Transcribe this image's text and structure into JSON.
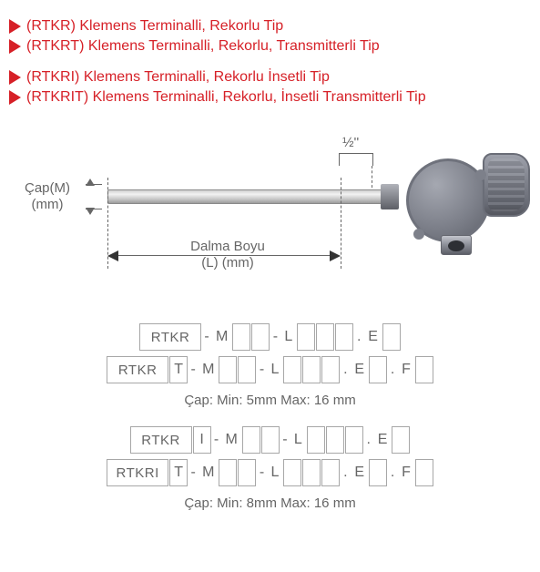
{
  "colors": {
    "accent": "#d62027",
    "text": "#666666",
    "box_border": "#a7a7a7",
    "metal_light": "#d0d0d0",
    "metal_dark": "#5d6069",
    "background": "#ffffff"
  },
  "headings": {
    "group1": {
      "line1": "(RTKR) Klemens Terminalli, Rekorlu Tip",
      "line2": "(RTKRT) Klemens Terminalli, Rekorlu, Transmitterli Tip"
    },
    "group2": {
      "line1": "(RTKRI) Klemens Terminalli, Rekorlu İnsetli Tip",
      "line2": "(RTKRIT) Klemens Terminalli, Rekorlu, İnsetli Transmitterli Tip"
    }
  },
  "diagram": {
    "thread_label": "½''",
    "diameter_label1": "Çap(M)",
    "diameter_label2": "(mm)",
    "length_label1": "Dalma Boyu",
    "length_label2": "(L) (mm)"
  },
  "codes": {
    "row1": {
      "prefix": "RTKR",
      "variant": "",
      "m": "M",
      "l": "L",
      "e": "E",
      "f": ""
    },
    "row2": {
      "prefix": "RTKR",
      "variant": "T",
      "m": "M",
      "l": "L",
      "e": "E",
      "f": "F"
    },
    "note1": "Çap: Min: 5mm Max: 16 mm",
    "row3": {
      "prefix": "RTKR",
      "variant": "I",
      "m": "M",
      "l": "L",
      "e": "E",
      "f": ""
    },
    "row4": {
      "prefix": "RTKRI",
      "variant": "T",
      "m": "M",
      "l": "L",
      "e": "E",
      "f": "F"
    },
    "note2": "Çap: Min: 8mm Max: 16 mm"
  },
  "separators": {
    "dash": "-",
    "dot": "."
  }
}
